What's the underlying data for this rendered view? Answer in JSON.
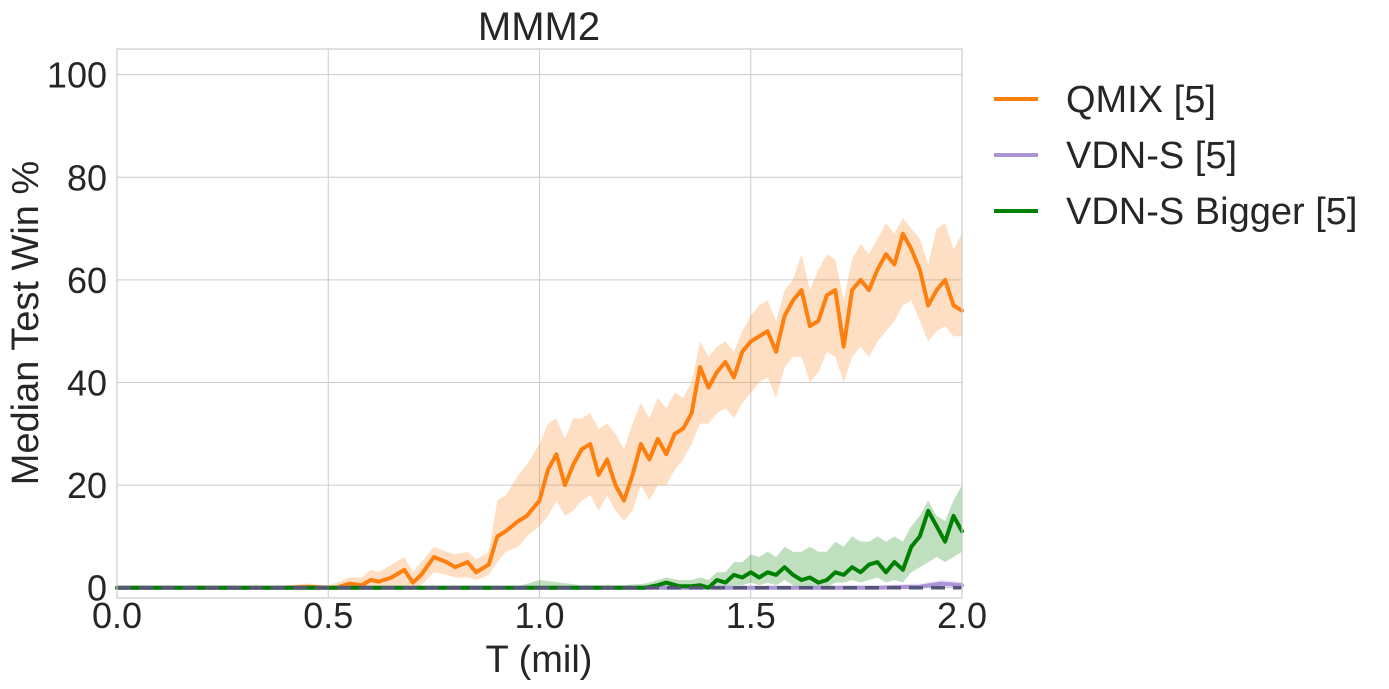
{
  "chart_data": {
    "type": "line",
    "title": "MMM2",
    "xlabel": "T (mil)",
    "ylabel": "Median Test Win %",
    "xlim": [
      0.0,
      2.0
    ],
    "ylim": [
      -2,
      105
    ],
    "xticks": [
      "0.0",
      "0.5",
      "1.0",
      "1.5",
      "2.0"
    ],
    "yticks": [
      "0",
      "20",
      "40",
      "60",
      "80",
      "100"
    ],
    "grid": true,
    "legend_position": "outside-right-top",
    "series": [
      {
        "name": "QMIX [5]",
        "color": "#ff7f0e",
        "style": "solid",
        "x": [
          0.0,
          0.1,
          0.2,
          0.3,
          0.4,
          0.45,
          0.5,
          0.52,
          0.55,
          0.58,
          0.6,
          0.62,
          0.65,
          0.68,
          0.7,
          0.72,
          0.75,
          0.78,
          0.8,
          0.83,
          0.85,
          0.88,
          0.9,
          0.92,
          0.95,
          0.97,
          1.0,
          1.02,
          1.04,
          1.06,
          1.08,
          1.1,
          1.12,
          1.14,
          1.16,
          1.18,
          1.2,
          1.22,
          1.24,
          1.26,
          1.28,
          1.3,
          1.32,
          1.34,
          1.36,
          1.38,
          1.4,
          1.42,
          1.44,
          1.46,
          1.48,
          1.5,
          1.52,
          1.54,
          1.56,
          1.58,
          1.6,
          1.62,
          1.64,
          1.66,
          1.68,
          1.7,
          1.72,
          1.74,
          1.76,
          1.78,
          1.8,
          1.82,
          1.84,
          1.86,
          1.88,
          1.9,
          1.92,
          1.94,
          1.96,
          1.98,
          2.0
        ],
        "y": [
          0,
          0,
          0,
          0,
          0,
          0.2,
          0,
          0,
          0.8,
          0.5,
          1.5,
          1.2,
          2.0,
          3.5,
          1.0,
          2.5,
          6.0,
          5.0,
          4.0,
          5.0,
          3.0,
          4.5,
          10.0,
          11.0,
          13.0,
          14.0,
          17.0,
          23.0,
          26.0,
          20.0,
          24.0,
          27.0,
          28.0,
          22.0,
          25.0,
          20.0,
          17.0,
          22.0,
          28.0,
          25.0,
          29.0,
          26.0,
          30.0,
          31.0,
          34.0,
          43.0,
          39.0,
          42.0,
          44.0,
          41.0,
          46.0,
          48.0,
          49.0,
          50.0,
          46.0,
          53.0,
          56.0,
          58.0,
          51.0,
          52.0,
          57.0,
          58.0,
          47.0,
          58.0,
          60.0,
          58.0,
          62.0,
          65.0,
          63.0,
          69.0,
          66.0,
          62.0,
          55.0,
          58.0,
          60.0,
          55.0,
          54.0
        ],
        "band_low": [
          0,
          0,
          0,
          0,
          0,
          0,
          0,
          0,
          0,
          0,
          0,
          0,
          0,
          0.5,
          0,
          0.5,
          3.0,
          2.5,
          2.0,
          2.0,
          1.5,
          2.5,
          5.0,
          7.0,
          8.0,
          10.0,
          12.0,
          14.0,
          17.0,
          14.0,
          15.0,
          17.0,
          18.0,
          15.0,
          18.0,
          15.0,
          13.0,
          15.0,
          20.0,
          17.0,
          20.0,
          20.0,
          23.0,
          25.0,
          28.0,
          32.0,
          32.0,
          34.0,
          35.0,
          33.0,
          36.0,
          38.0,
          40.0,
          41.0,
          37.0,
          43.0,
          45.0,
          45.0,
          40.0,
          42.0,
          46.0,
          45.0,
          40.0,
          45.0,
          47.0,
          45.0,
          48.0,
          50.0,
          52.0,
          55.0,
          56.0,
          52.0,
          48.0,
          50.0,
          51.0,
          49.0,
          49.0
        ],
        "band_high": [
          0,
          0,
          0,
          0,
          0.5,
          0.8,
          0.5,
          1.0,
          2.0,
          2.0,
          3.5,
          3.0,
          4.5,
          6.0,
          3.0,
          5.0,
          8.0,
          7.0,
          6.5,
          7.0,
          5.5,
          7.0,
          17.0,
          18.0,
          22.0,
          24.0,
          28.0,
          32.0,
          33.0,
          29.0,
          33.0,
          33.0,
          34.0,
          31.0,
          32.0,
          30.0,
          27.0,
          32.0,
          36.0,
          33.0,
          37.0,
          35.0,
          38.0,
          37.0,
          40.0,
          48.0,
          45.0,
          47.0,
          48.0,
          46.0,
          50.0,
          53.0,
          55.0,
          56.0,
          52.0,
          58.0,
          60.0,
          65.0,
          58.0,
          62.0,
          65.0,
          64.0,
          56.0,
          64.0,
          67.0,
          65.0,
          68.0,
          71.0,
          69.0,
          72.0,
          70.0,
          68.0,
          63.0,
          70.0,
          71.0,
          66.0,
          69.0
        ]
      },
      {
        "name": "VDN-S [5]",
        "color": "#ab94d6",
        "style": "solid",
        "x": [
          0.0,
          0.5,
          1.0,
          1.24,
          1.5,
          1.8,
          1.9,
          1.95,
          2.0
        ],
        "y": [
          0,
          0,
          0,
          0,
          0,
          0,
          0.2,
          0.8,
          0.5
        ],
        "band_low": [
          0,
          0,
          0,
          0,
          0,
          0,
          0,
          0,
          0
        ],
        "band_high": [
          0,
          0,
          0,
          0.3,
          0.3,
          0.5,
          0.8,
          1.5,
          1.2
        ]
      },
      {
        "name": "VDN-S Bigger [5]",
        "color": "#008000",
        "style": "solid",
        "x": [
          0.0,
          0.5,
          0.9,
          0.95,
          1.0,
          1.1,
          1.2,
          1.25,
          1.28,
          1.3,
          1.33,
          1.36,
          1.38,
          1.4,
          1.42,
          1.44,
          1.46,
          1.48,
          1.5,
          1.52,
          1.54,
          1.56,
          1.58,
          1.6,
          1.62,
          1.64,
          1.66,
          1.68,
          1.7,
          1.72,
          1.74,
          1.76,
          1.78,
          1.8,
          1.82,
          1.84,
          1.86,
          1.88,
          1.9,
          1.92,
          1.94,
          1.96,
          1.98,
          2.0
        ],
        "y": [
          0,
          0,
          0,
          0,
          0,
          0,
          0,
          0,
          0.5,
          1.0,
          0.3,
          0.3,
          0.5,
          0,
          1.5,
          1.0,
          2.5,
          2.0,
          3.0,
          2.0,
          3.0,
          2.5,
          4.0,
          2.5,
          1.5,
          2.0,
          1.0,
          1.5,
          3.0,
          2.5,
          4.0,
          3.0,
          4.5,
          5.0,
          3.0,
          5.0,
          3.5,
          8.0,
          10.0,
          15.0,
          12.0,
          9.0,
          14.0,
          11.0
        ],
        "band_low": [
          0,
          0,
          0,
          0,
          0,
          0,
          0,
          0,
          0,
          0,
          0,
          0,
          0,
          0,
          0,
          0,
          0.5,
          0.5,
          1.0,
          0.5,
          1.0,
          0.5,
          1.5,
          0.5,
          0,
          0,
          0,
          0,
          1.0,
          1.0,
          1.5,
          1.0,
          1.5,
          2.0,
          1.0,
          1.5,
          1.0,
          3.0,
          4.0,
          5.0,
          6.0,
          5.0,
          6.0,
          7.0
        ],
        "band_high": [
          0,
          0,
          0,
          0.3,
          1.5,
          0.5,
          0.5,
          0.8,
          1.5,
          2.0,
          1.5,
          1.5,
          2.0,
          1.5,
          3.0,
          3.0,
          5.0,
          5.0,
          6.5,
          6.0,
          7.0,
          6.0,
          8.0,
          7.0,
          7.0,
          8.0,
          7.0,
          7.0,
          9.0,
          8.0,
          10.0,
          9.0,
          9.0,
          10.0,
          9.0,
          10.0,
          9.0,
          12.0,
          14.0,
          17.0,
          14.0,
          13.0,
          17.0,
          20.0
        ]
      }
    ]
  }
}
